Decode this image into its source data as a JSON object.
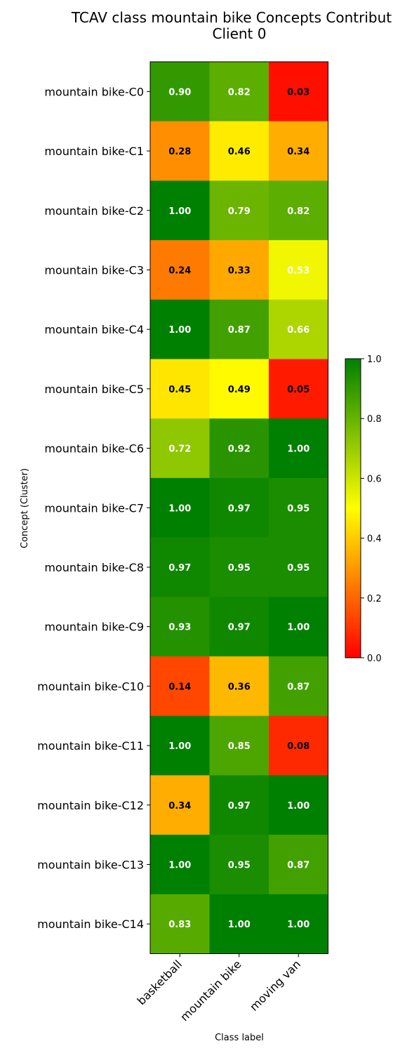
{
  "chart_data": {
    "type": "heatmap",
    "title_line1": "TCAV class mountain bike Concepts Contribut",
    "title_line2": "Client 0",
    "xlabel": "Class label",
    "ylabel": "Concept (Cluster)",
    "x_categories": [
      "basketball",
      "mountain bike",
      "moving van"
    ],
    "y_categories": [
      "mountain bike-C0",
      "mountain bike-C1",
      "mountain bike-C2",
      "mountain bike-C3",
      "mountain bike-C4",
      "mountain bike-C5",
      "mountain bike-C6",
      "mountain bike-C7",
      "mountain bike-C8",
      "mountain bike-C9",
      "mountain bike-C10",
      "mountain bike-C11",
      "mountain bike-C12",
      "mountain bike-C13",
      "mountain bike-C14"
    ],
    "values": [
      [
        0.9,
        0.82,
        0.03
      ],
      [
        0.28,
        0.46,
        0.34
      ],
      [
        1.0,
        0.79,
        0.82
      ],
      [
        0.24,
        0.33,
        0.53
      ],
      [
        1.0,
        0.87,
        0.66
      ],
      [
        0.45,
        0.49,
        0.05
      ],
      [
        0.72,
        0.92,
        1.0
      ],
      [
        1.0,
        0.97,
        0.95
      ],
      [
        0.97,
        0.95,
        0.95
      ],
      [
        0.93,
        0.97,
        1.0
      ],
      [
        0.14,
        0.36,
        0.87
      ],
      [
        1.0,
        0.85,
        0.08
      ],
      [
        0.34,
        0.97,
        1.0
      ],
      [
        1.0,
        0.95,
        0.87
      ],
      [
        0.83,
        1.0,
        1.0
      ]
    ],
    "colorbar": {
      "range": [
        0.0,
        1.0
      ],
      "ticks": [
        "0.0",
        "0.2",
        "0.4",
        "0.6",
        "0.8",
        "1.0"
      ],
      "colormap": [
        "#ff0000",
        "#ffff00",
        "#008000"
      ]
    },
    "label_colors": {
      "dark": "#ffffff",
      "light": "#000000"
    }
  }
}
